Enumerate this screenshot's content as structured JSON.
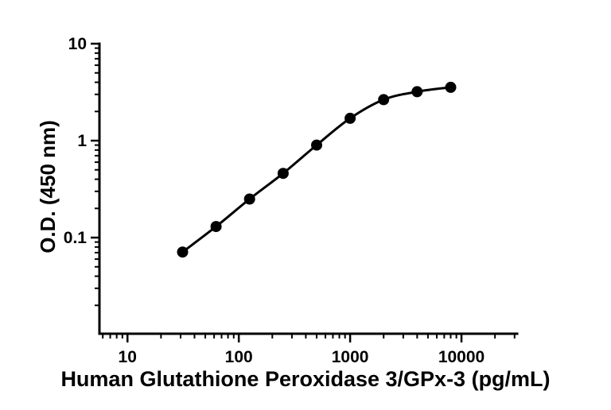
{
  "chart_data": {
    "type": "scatter",
    "title": "",
    "xlabel": "Human Glutathione Peroxidase 3/GPx-3 (pg/mL)",
    "ylabel": "O.D. (450 nm)",
    "x_scale": "log",
    "y_scale": "log",
    "xlim": [
      5.6,
      31623
    ],
    "ylim": [
      0.0102,
      10
    ],
    "x_major_ticks": [
      10,
      100,
      1000,
      10000
    ],
    "x_major_labels": [
      "10",
      "100",
      "1000",
      "10000"
    ],
    "y_major_ticks": [
      0.1,
      1,
      10
    ],
    "y_major_labels": [
      "0.1",
      "1",
      "10"
    ],
    "grid": "off",
    "legend": "none",
    "axis_color": "#000000",
    "line_color": "#000000",
    "marker_color": "#000000",
    "points": {
      "x": [
        31.25,
        62.5,
        125,
        250,
        500,
        1000,
        2000,
        4000,
        8000
      ],
      "y": [
        0.071,
        0.13,
        0.25,
        0.46,
        0.9,
        1.7,
        2.65,
        3.2,
        3.55
      ]
    }
  }
}
